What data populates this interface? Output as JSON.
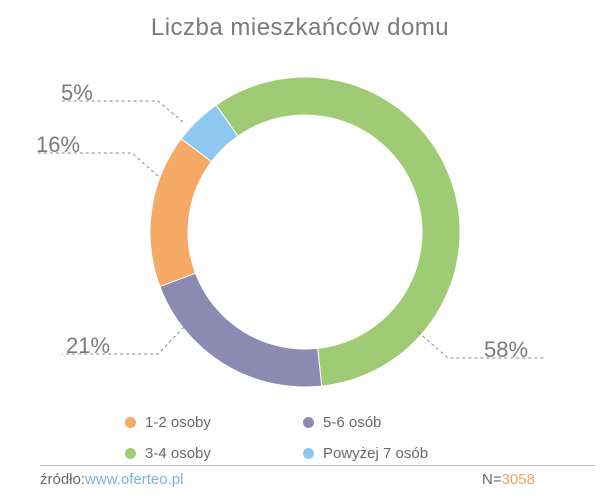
{
  "chart_data": {
    "type": "pie",
    "title": "Liczba mieszkańców domu",
    "categories": [
      "1-2 osoby",
      "3-4 osoby",
      "5-6 osób",
      "Powyżej 7 osób"
    ],
    "values": [
      16,
      58,
      21,
      5
    ],
    "value_labels": [
      "16%",
      "58%",
      "21%",
      "5%"
    ],
    "colors": [
      "#f4a965",
      "#9ecb74",
      "#8c8ab3",
      "#8ec8f1"
    ],
    "donut": true,
    "legend_position": "bottom"
  },
  "footer": {
    "source_label": "źródło:",
    "source_url": "www.oferteo.pl",
    "n_label": "N=",
    "n_value": "3058"
  }
}
